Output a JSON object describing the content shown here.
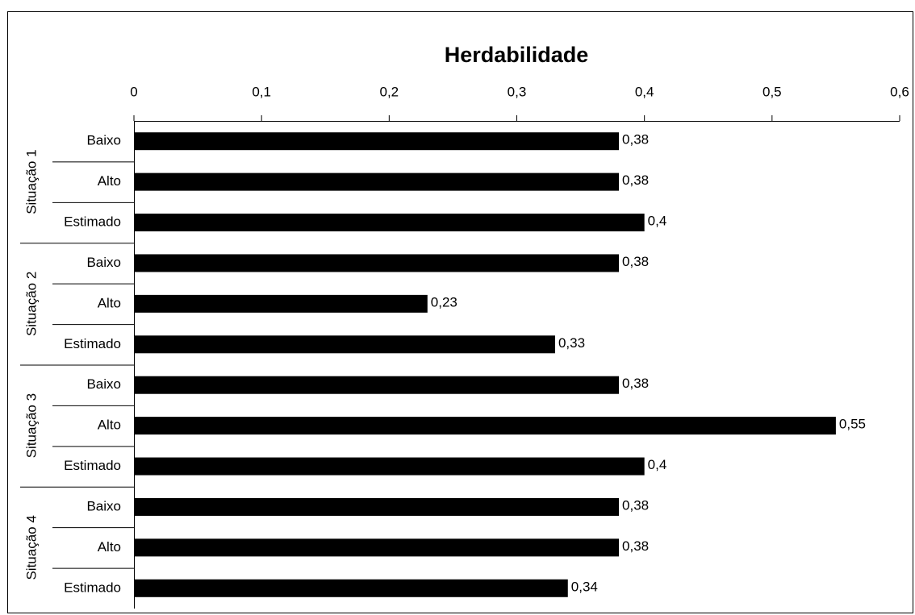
{
  "chart_data": {
    "type": "bar",
    "orientation": "horizontal",
    "title": "Herdabilidade",
    "color": "#000000",
    "xlim": [
      0,
      0.6
    ],
    "xticks": [
      0,
      {
        "value": 0.1,
        "label": "0,1"
      },
      {
        "value": 0.2,
        "label": "0,2"
      },
      {
        "value": 0.3,
        "label": "0,3"
      },
      {
        "value": 0.4,
        "label": "0,4"
      },
      {
        "value": 0.5,
        "label": "0,5"
      },
      {
        "value": 0.6,
        "label": "0,6"
      }
    ],
    "groups": [
      {
        "name": "Situação 1",
        "categories": [
          "Baixo",
          "Alto",
          "Estimado"
        ],
        "values": [
          0.38,
          0.38,
          0.4
        ],
        "value_labels": [
          "0,38",
          "0,38",
          "0,4"
        ]
      },
      {
        "name": "Situação 2",
        "categories": [
          "Baixo",
          "Alto",
          "Estimado"
        ],
        "values": [
          0.38,
          0.23,
          0.33
        ],
        "value_labels": [
          "0,38",
          "0,23",
          "0,33"
        ]
      },
      {
        "name": "Situação 3",
        "categories": [
          "Baixo",
          "Alto",
          "Estimado"
        ],
        "values": [
          0.38,
          0.55,
          0.4
        ],
        "value_labels": [
          "0,38",
          "0,55",
          "0,4"
        ]
      },
      {
        "name": "Situação 4",
        "categories": [
          "Baixo",
          "Alto",
          "Estimado"
        ],
        "values": [
          0.38,
          0.38,
          0.34
        ],
        "value_labels": [
          "0,38",
          "0,38",
          "0,34"
        ]
      }
    ]
  }
}
